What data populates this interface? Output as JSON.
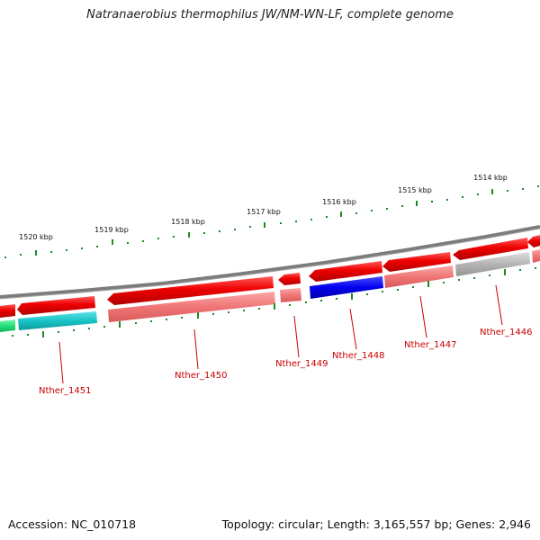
{
  "title": "Natranaerobius thermophilus JW/NM-WN-LF, complete genome",
  "footer": {
    "accession": "Accession: NC_010718",
    "summary": "Topology: circular; Length: 3,165,557 bp; Genes: 2,946"
  },
  "colors": {
    "gene_dark": "#e80000",
    "gene_light": "#f07878",
    "teal": "#19c3c6",
    "green": "#22e07a",
    "blue": "#0000ee",
    "gray": "#b4b4b4",
    "backbone": "#7c7c7c",
    "tick": "#1f8a1f",
    "label": "#cc0000"
  },
  "scale": {
    "labels": [
      "1520 kbp",
      "1519 kbp",
      "1518 kbp",
      "1517 kbp",
      "1516 kbp",
      "1515 kbp",
      "1514 kbp"
    ]
  },
  "genes": [
    {
      "name": "Nther_1451"
    },
    {
      "name": "Nther_1450"
    },
    {
      "name": "Nther_1449"
    },
    {
      "name": "Nther_1448"
    },
    {
      "name": "Nther_1447"
    },
    {
      "name": "Nther_1446"
    }
  ]
}
